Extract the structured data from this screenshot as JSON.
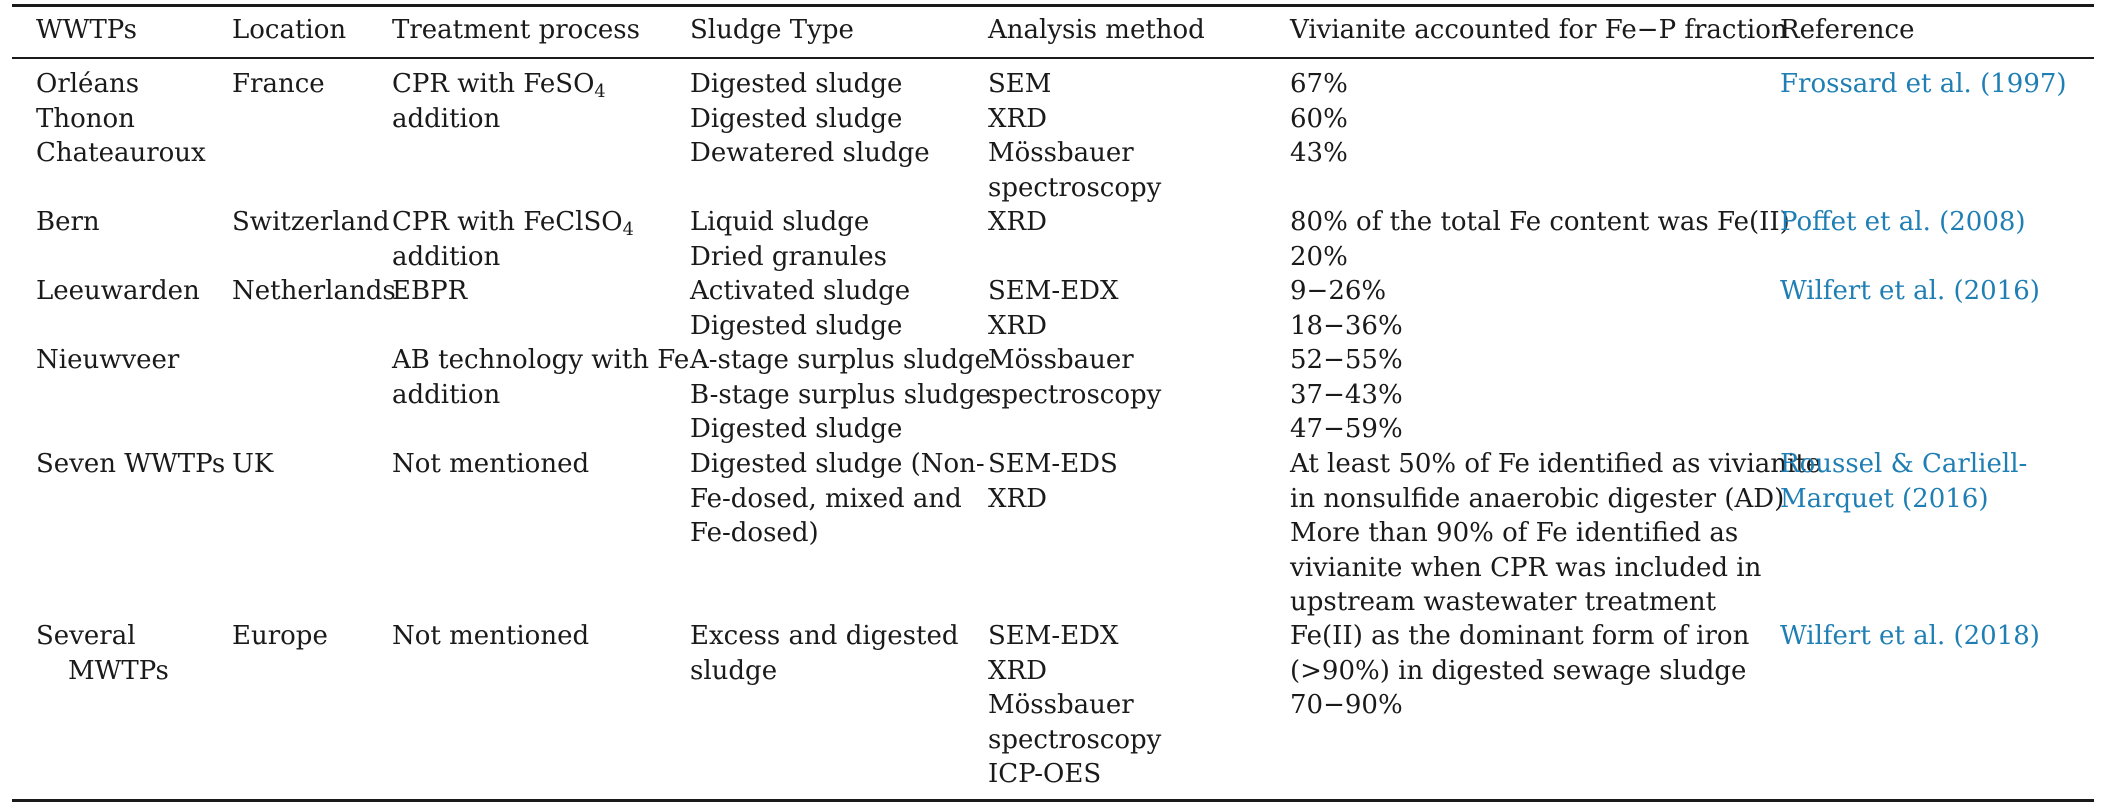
{
  "table": {
    "headers": {
      "wwtps": "WWTPs",
      "location": "Location",
      "treatment_process": "Treatment process",
      "sludge_type": "Sludge Type",
      "analysis_method": "Analysis method",
      "vivianite_fraction": "Vivianite accounted for Fe−P fraction",
      "reference": "Reference"
    },
    "rows": [
      {
        "wwtps": [
          "Orléans",
          "Thonon",
          "Chateauroux"
        ],
        "location": [
          "France"
        ],
        "treatment_process": {
          "prefix": "CPR with FeSO",
          "subscript": "4",
          "line2": "addition"
        },
        "sludge_type": [
          "Digested sludge",
          "Digested sludge",
          "Dewatered sludge"
        ],
        "analysis_method": [
          "SEM",
          "XRD",
          "Mössbauer",
          "spectroscopy"
        ],
        "vivianite_fraction": [
          "67%",
          "60%",
          "43%"
        ],
        "reference": [
          "Frossard et al. (1997)"
        ]
      },
      {
        "wwtps": [
          "Bern"
        ],
        "location": [
          "Switzerland"
        ],
        "treatment_process": {
          "prefix": "CPR with FeClSO",
          "subscript": "4",
          "line2": "addition"
        },
        "sludge_type": [
          "Liquid sludge",
          "Dried granules"
        ],
        "analysis_method": [
          "XRD"
        ],
        "vivianite_fraction": [
          "80% of the total Fe content was Fe(II)",
          "20%"
        ],
        "reference": [
          "Poffet et al. (2008)"
        ]
      },
      {
        "wwtps": [
          "Leeuwarden"
        ],
        "location": [
          "Netherlands"
        ],
        "treatment_process": [
          "EBPR"
        ],
        "sludge_type": [
          "Activated sludge",
          "Digested sludge"
        ],
        "analysis_method": [
          "SEM-EDX",
          "XRD"
        ],
        "vivianite_fraction": [
          "9−26%",
          "18−36%"
        ],
        "reference": [
          "Wilfert et al. (2016)"
        ]
      },
      {
        "wwtps": [
          "Nieuwveer"
        ],
        "location": [],
        "treatment_process": [
          "AB technology with Fe",
          "addition"
        ],
        "sludge_type": [
          "A-stage surplus sludge",
          "B-stage surplus sludge",
          "Digested sludge"
        ],
        "analysis_method": [
          "Mössbauer",
          "spectroscopy"
        ],
        "vivianite_fraction": [
          "52−55%",
          "37−43%",
          "47−59%"
        ],
        "reference": []
      },
      {
        "wwtps": [
          "Seven WWTPs"
        ],
        "location": [
          "UK"
        ],
        "treatment_process": [
          "Not mentioned"
        ],
        "sludge_type": [
          "Digested sludge (Non-",
          "Fe-dosed, mixed and",
          "Fe-dosed)"
        ],
        "analysis_method": [
          "SEM-EDS",
          "XRD"
        ],
        "vivianite_fraction": [
          "At least 50% of Fe identified as vivianite",
          "in nonsulfide anaerobic digester (AD)",
          "More than 90% of Fe identified as",
          "vivianite when CPR was included in",
          "upstream wastewater treatment"
        ],
        "reference": [
          "Roussel & Carliell-",
          "Marquet (2016)"
        ]
      },
      {
        "wwtps": [
          "Several",
          "MWTPs"
        ],
        "location": [
          "Europe"
        ],
        "treatment_process": [
          "Not mentioned"
        ],
        "sludge_type": [
          "Excess and digested",
          "sludge"
        ],
        "analysis_method": [
          "SEM-EDX",
          "XRD",
          "Mössbauer",
          "spectroscopy",
          "ICP-OES"
        ],
        "vivianite_fraction": [
          "Fe(II) as the dominant form of iron",
          "(>90%) in digested sewage sludge",
          "70−90%"
        ],
        "reference": [
          "Wilfert et al. (2018)"
        ]
      }
    ]
  }
}
